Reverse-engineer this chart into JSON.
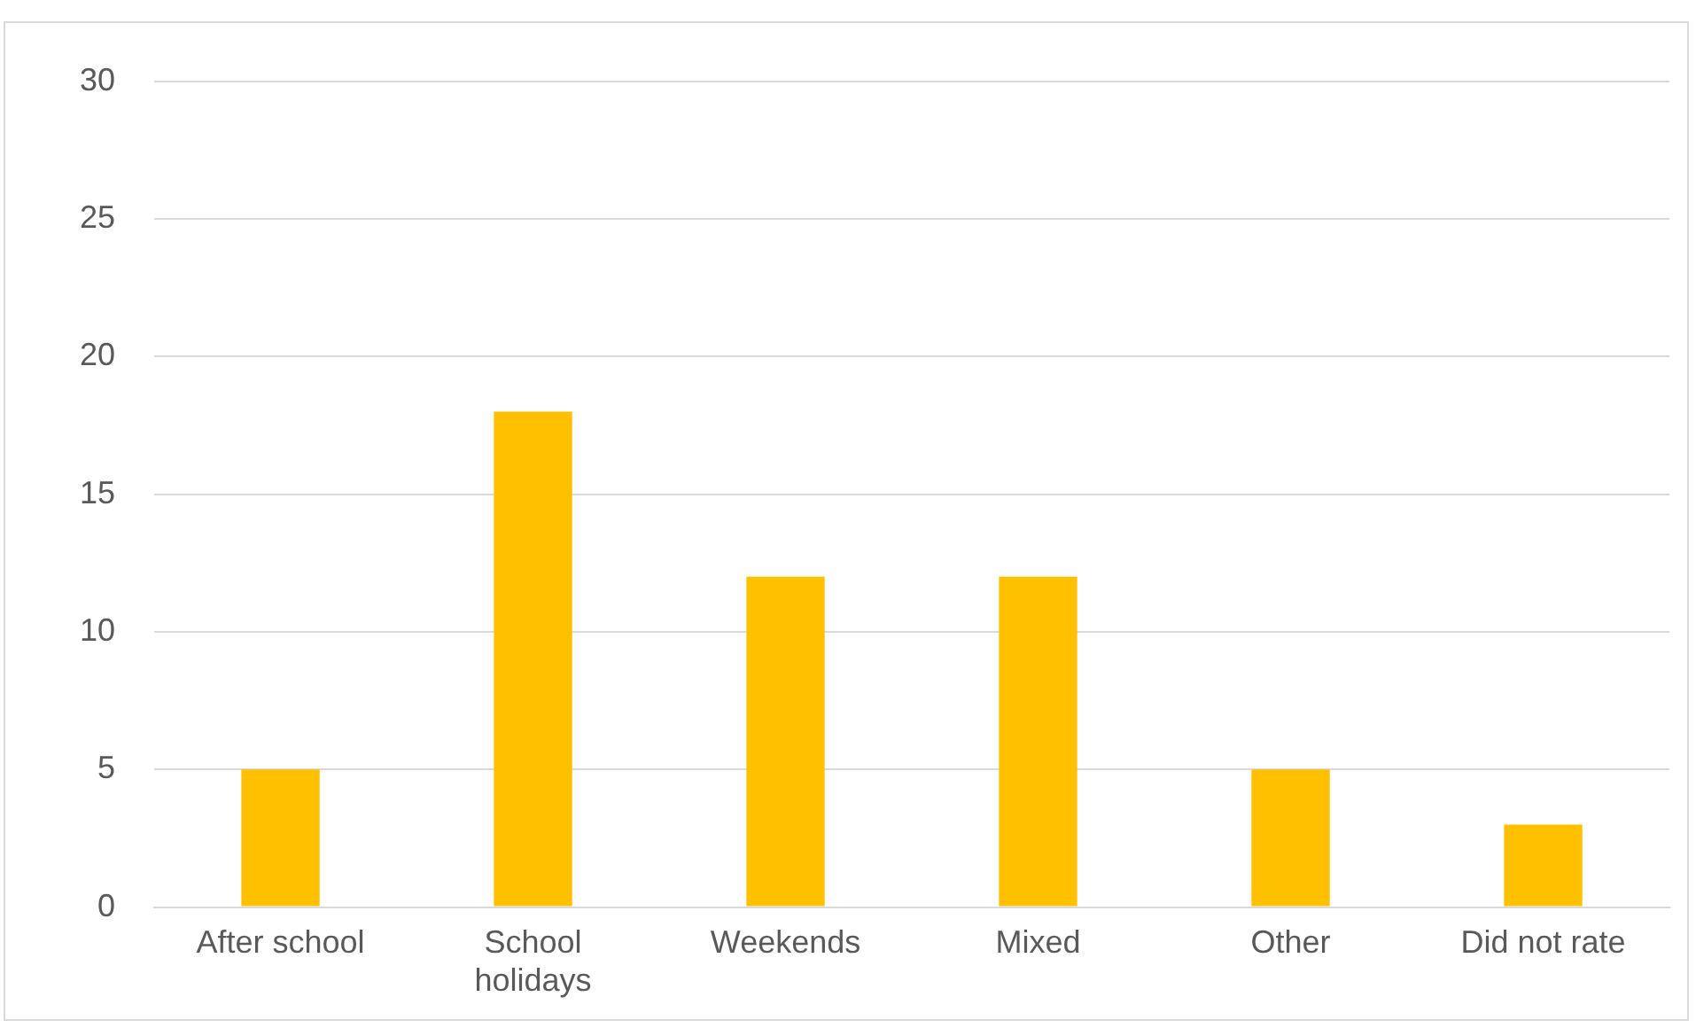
{
  "chart_data": {
    "type": "bar",
    "categories": [
      "After school",
      "School holidays",
      "Weekends",
      "Mixed",
      "Other",
      "Did not rate"
    ],
    "values": [
      5,
      18,
      12,
      12,
      5,
      3
    ],
    "color": "#ffc000",
    "ylim": [
      0,
      30
    ],
    "yticks": [
      0,
      5,
      10,
      15,
      20,
      25,
      30
    ],
    "grid": "y",
    "legend": false
  }
}
